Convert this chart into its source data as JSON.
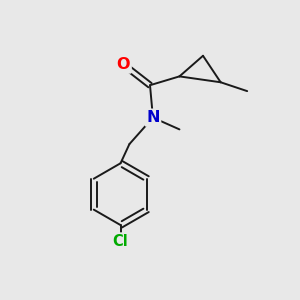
{
  "background_color": "#e8e8e8",
  "bond_color": "#1a1a1a",
  "O_color": "#ff0000",
  "N_color": "#0000cc",
  "Cl_color": "#00aa00",
  "line_width": 1.4,
  "font_size": 10.5,
  "fig_size": [
    3.0,
    3.0
  ],
  "dpi": 100,
  "xlim": [
    0,
    10
  ],
  "ylim": [
    0,
    10
  ]
}
